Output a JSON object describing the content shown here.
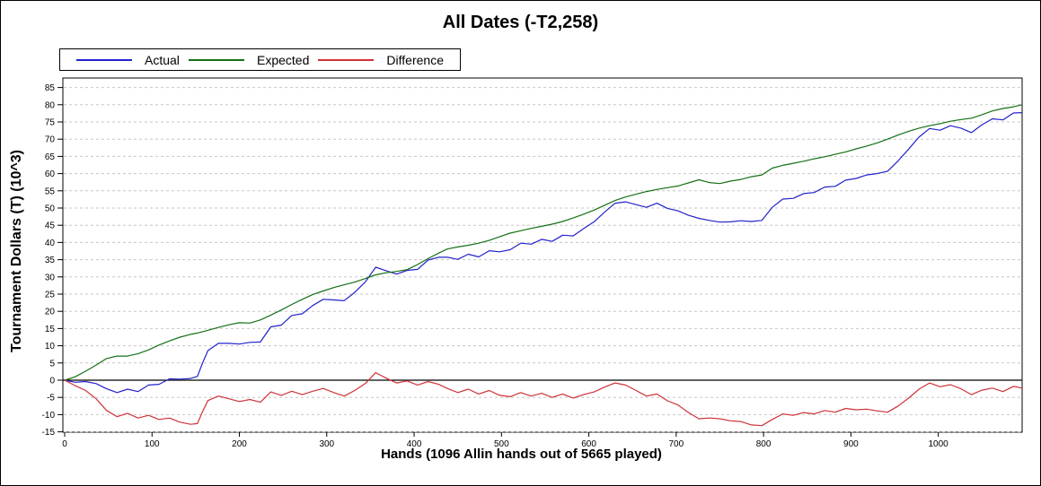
{
  "header": {
    "title": "All Dates (-T2,258)"
  },
  "legend": {
    "items": [
      {
        "label": "Actual",
        "color": "#2222cc"
      },
      {
        "label": "Expected",
        "color": "#157015"
      },
      {
        "label": "Difference",
        "color": "#d03238"
      }
    ]
  },
  "axes": {
    "y_title": "Tournament Dollars (T) (10^3)",
    "x_title": "Hands (1096 Allin hands out of 5665 played)",
    "y_ticks": [
      85,
      80,
      75,
      70,
      65,
      60,
      55,
      50,
      45,
      40,
      35,
      30,
      25,
      20,
      15,
      10,
      5,
      0,
      -5,
      -10,
      -15
    ],
    "x_ticks": [
      0,
      100,
      200,
      300,
      400,
      500,
      600,
      700,
      800,
      900,
      1000
    ]
  },
  "chart_data": {
    "type": "line",
    "title": "All Dates (-T2,258)",
    "xlabel": "Hands (1096 Allin hands out of 5665 played)",
    "ylabel": "Tournament Dollars (T) (10^3)",
    "xlim": [
      0,
      1096
    ],
    "ylim": [
      -15.5,
      87.5
    ],
    "grid": true,
    "legend_position": "top-left",
    "zero_line": true,
    "final_difference_label": "-T2,258",
    "x": [
      0,
      12,
      24,
      36,
      48,
      60,
      72,
      84,
      96,
      108,
      120,
      132,
      144,
      152,
      158,
      164,
      176,
      188,
      200,
      212,
      224,
      236,
      248,
      260,
      272,
      284,
      296,
      308,
      320,
      332,
      344,
      356,
      368,
      380,
      392,
      404,
      416,
      428,
      438,
      450,
      462,
      474,
      486,
      498,
      510,
      522,
      534,
      546,
      558,
      570,
      582,
      594,
      606,
      618,
      630,
      642,
      654,
      666,
      678,
      690,
      702,
      714,
      726,
      738,
      750,
      762,
      774,
      786,
      798,
      810,
      822,
      834,
      846,
      858,
      870,
      882,
      894,
      906,
      918,
      930,
      942,
      954,
      966,
      978,
      990,
      1002,
      1014,
      1026,
      1038,
      1050,
      1062,
      1074,
      1086,
      1096
    ],
    "series": [
      {
        "name": "Actual",
        "color": "#2222cc",
        "values": [
          0,
          -0.6,
          -0.4,
          -1.0,
          -2.5,
          -3.6,
          -2.6,
          -3.3,
          -1.4,
          -1.2,
          0.4,
          0.3,
          0.5,
          1.1,
          5.1,
          8.6,
          10.7,
          10.7,
          10.5,
          11.0,
          11.1,
          15.5,
          16.0,
          18.8,
          19.3,
          21.7,
          23.5,
          23.3,
          23.1,
          25.5,
          28.5,
          32.8,
          31.8,
          30.8,
          31.9,
          32.2,
          34.9,
          35.7,
          35.7,
          35.1,
          36.6,
          35.8,
          37.6,
          37.3,
          37.9,
          39.8,
          39.5,
          40.9,
          40.3,
          42.1,
          41.9,
          44.0,
          46.0,
          48.8,
          51.4,
          51.8,
          51.0,
          50.2,
          51.4,
          49.9,
          49.2,
          47.9,
          47.0,
          46.4,
          45.9,
          46.0,
          46.3,
          46.1,
          46.4,
          50.2,
          52.6,
          52.8,
          54.2,
          54.5,
          56.1,
          56.3,
          58.1,
          58.6,
          59.6,
          60.0,
          60.7,
          63.7,
          67.1,
          70.6,
          73.1,
          72.6,
          73.9,
          73.2,
          71.9,
          74.2,
          75.9,
          75.6,
          77.6,
          77.7
        ]
      },
      {
        "name": "Expected",
        "color": "#157015",
        "values": [
          0,
          1.0,
          2.6,
          4.4,
          6.3,
          7.0,
          7.0,
          7.7,
          8.8,
          10.2,
          11.4,
          12.5,
          13.3,
          13.7,
          14.1,
          14.5,
          15.3,
          16.1,
          16.7,
          16.6,
          17.5,
          18.9,
          20.4,
          22.0,
          23.5,
          24.9,
          25.9,
          26.9,
          27.7,
          28.5,
          29.5,
          30.6,
          31.2,
          31.6,
          32.1,
          33.6,
          35.3,
          36.9,
          38.1,
          38.7,
          39.2,
          39.8,
          40.6,
          41.7,
          42.7,
          43.4,
          44.1,
          44.7,
          45.3,
          46.1,
          47.1,
          48.2,
          49.4,
          50.8,
          52.2,
          53.2,
          54.0,
          54.8,
          55.4,
          55.9,
          56.4,
          57.3,
          58.2,
          57.4,
          57.1,
          57.8,
          58.3,
          59.1,
          59.6,
          61.6,
          62.4,
          63.0,
          63.6,
          64.3,
          64.9,
          65.6,
          66.3,
          67.2,
          68.0,
          68.9,
          70.0,
          71.2,
          72.3,
          73.2,
          73.9,
          74.5,
          75.2,
          75.7,
          76.1,
          77.1,
          78.2,
          78.9,
          79.4,
          80.0
        ]
      },
      {
        "name": "Difference",
        "color": "#d03238",
        "values": [
          0,
          -1.6,
          -3.0,
          -5.4,
          -8.8,
          -10.6,
          -9.6,
          -11.0,
          -10.2,
          -11.4,
          -11.0,
          -12.2,
          -12.8,
          -12.6,
          -9.0,
          -5.9,
          -4.6,
          -5.4,
          -6.2,
          -5.6,
          -6.4,
          -3.4,
          -4.4,
          -3.2,
          -4.2,
          -3.2,
          -2.4,
          -3.6,
          -4.6,
          -3.0,
          -1.0,
          2.2,
          0.6,
          -0.8,
          -0.2,
          -1.4,
          -0.4,
          -1.2,
          -2.4,
          -3.6,
          -2.6,
          -4.0,
          -3.0,
          -4.4,
          -4.8,
          -3.6,
          -4.6,
          -3.8,
          -5.0,
          -4.0,
          -5.2,
          -4.2,
          -3.4,
          -2.0,
          -0.8,
          -1.4,
          -3.0,
          -4.6,
          -4.0,
          -6.0,
          -7.2,
          -9.4,
          -11.2,
          -11.0,
          -11.2,
          -11.8,
          -12.0,
          -13.0,
          -13.2,
          -11.4,
          -9.8,
          -10.2,
          -9.4,
          -9.8,
          -8.8,
          -9.3,
          -8.2,
          -8.6,
          -8.4,
          -8.9,
          -9.3,
          -7.5,
          -5.2,
          -2.6,
          -0.8,
          -1.9,
          -1.3,
          -2.5,
          -4.2,
          -2.9,
          -2.3,
          -3.3,
          -1.8,
          -2.3
        ]
      }
    ]
  }
}
